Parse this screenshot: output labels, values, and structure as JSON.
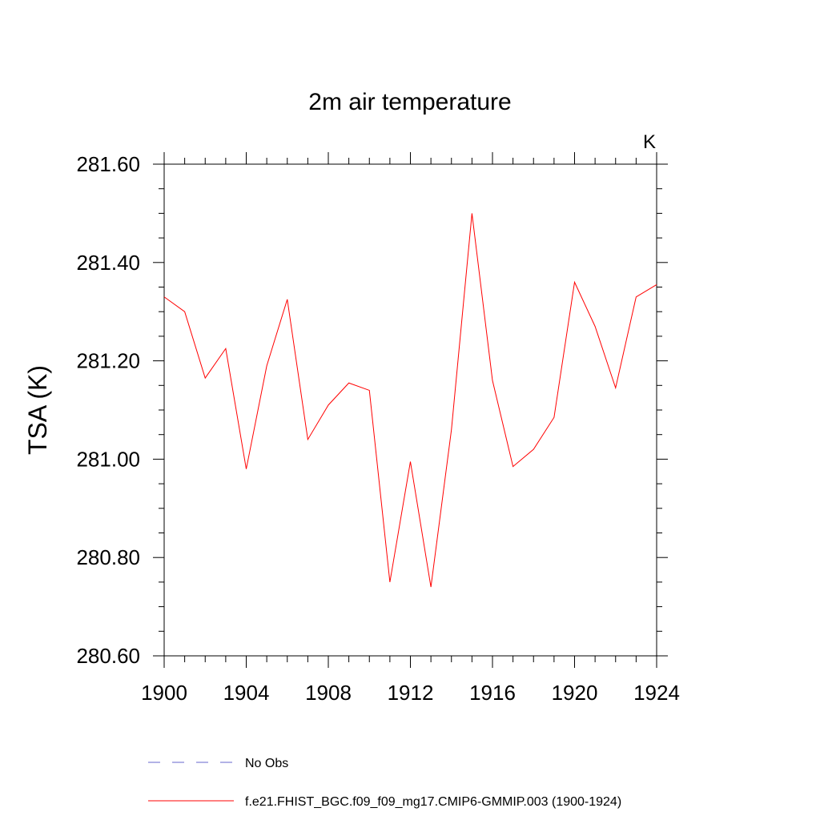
{
  "chart_data": {
    "type": "line",
    "title": "2m air temperature",
    "units_label": "K",
    "ylabel": "TSA  (K)",
    "xlabel": "",
    "xlim": [
      1900,
      1924
    ],
    "ylim": [
      280.6,
      281.6
    ],
    "x_ticks": [
      "1900",
      "1904",
      "1908",
      "1912",
      "1916",
      "1920",
      "1924"
    ],
    "y_ticks": [
      "280.60",
      "280.80",
      "281.00",
      "281.20",
      "281.40",
      "281.60"
    ],
    "grid": false,
    "legend_position": "bottom",
    "series": [
      {
        "name": "f.e21.FHIST_BGC.f09_f09_mg17.CMIP6-GMMIP.003 (1900-1924)",
        "color": "#ff0000",
        "style": "solid",
        "x": [
          1900,
          1901,
          1902,
          1903,
          1904,
          1905,
          1906,
          1907,
          1908,
          1909,
          1910,
          1911,
          1912,
          1913,
          1914,
          1915,
          1916,
          1917,
          1918,
          1919,
          1920,
          1921,
          1922,
          1923,
          1924
        ],
        "y": [
          281.33,
          281.3,
          281.165,
          281.225,
          280.98,
          281.19,
          281.325,
          281.04,
          281.11,
          281.155,
          281.14,
          280.75,
          280.995,
          280.74,
          281.06,
          281.5,
          281.16,
          280.985,
          281.02,
          281.085,
          281.36,
          281.27,
          281.145,
          281.33,
          281.355
        ]
      }
    ],
    "legend": [
      {
        "label": "No Obs",
        "color": "#6666cc",
        "style": "dashed"
      },
      {
        "label": "f.e21.FHIST_BGC.f09_f09_mg17.CMIP6-GMMIP.003 (1900-1924)",
        "color": "#ff0000",
        "style": "solid"
      }
    ]
  }
}
